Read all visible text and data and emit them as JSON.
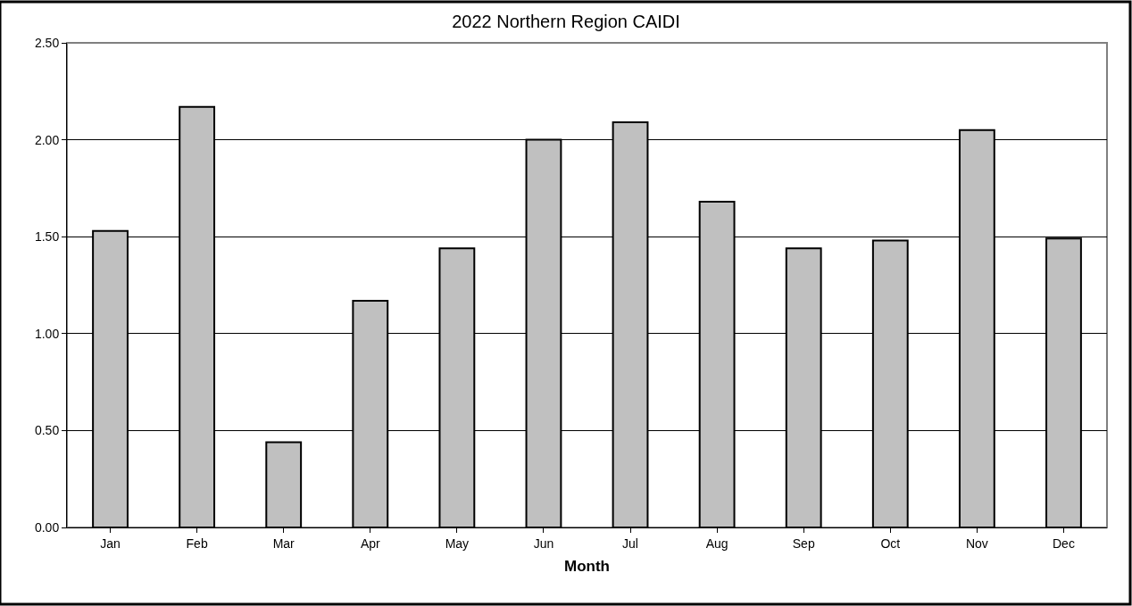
{
  "chart_data": {
    "type": "bar",
    "title": "2022 Northern Region CAIDI",
    "xlabel": "Month",
    "categories": [
      "Jan",
      "Feb",
      "Mar",
      "Apr",
      "May",
      "Jun",
      "Jul",
      "Aug",
      "Sep",
      "Oct",
      "Nov",
      "Dec"
    ],
    "values": [
      1.53,
      2.17,
      0.44,
      1.17,
      1.44,
      2.0,
      2.09,
      1.68,
      1.44,
      1.48,
      2.05,
      1.49
    ],
    "color": "#c0c0c0",
    "ylim": [
      0,
      2.5
    ],
    "yticks": [
      {
        "value": 0,
        "label": "0.00"
      },
      {
        "value": 0.5,
        "label": "0.50"
      },
      {
        "value": 1,
        "label": "1.00"
      },
      {
        "value": 1.5,
        "label": "1.50"
      },
      {
        "value": 2,
        "label": "2.00"
      },
      {
        "value": 2.5,
        "label": "2.50"
      }
    ],
    "grid": "y",
    "legend": false
  }
}
